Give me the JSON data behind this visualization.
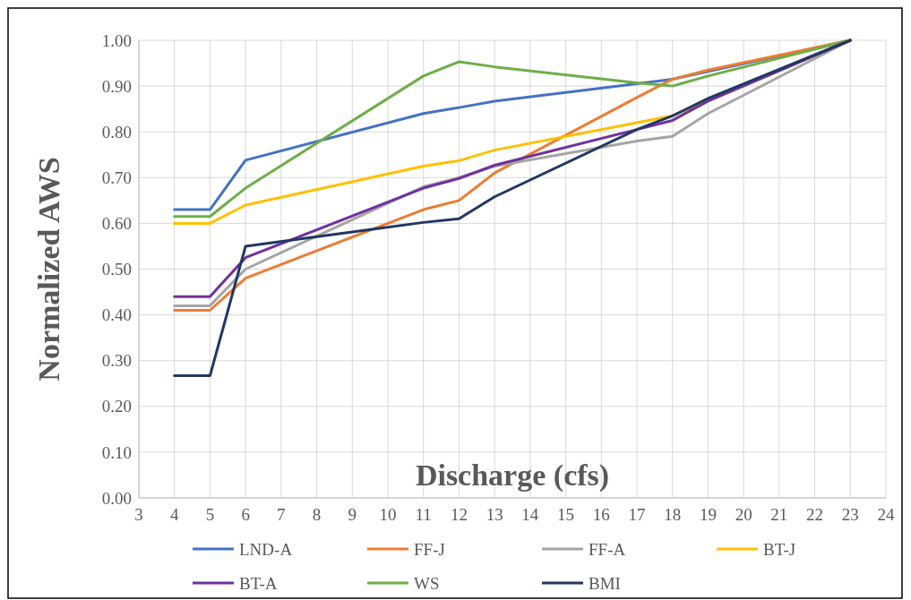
{
  "chart_data": {
    "type": "line",
    "xlabel": "Discharge (cfs)",
    "ylabel": "Normalized AWS",
    "x": [
      4,
      5,
      6,
      11,
      12,
      13,
      17,
      18,
      19,
      23
    ],
    "xlim": [
      3,
      24
    ],
    "xticks": [
      3,
      4,
      5,
      6,
      7,
      8,
      9,
      10,
      11,
      12,
      13,
      14,
      15,
      16,
      17,
      18,
      19,
      20,
      21,
      22,
      23,
      24
    ],
    "ylim": [
      0,
      1
    ],
    "yticks": [
      {
        "value": 0,
        "label": "0.00"
      },
      {
        "value": 0.1,
        "label": "0.10"
      },
      {
        "value": 0.2,
        "label": "0.20"
      },
      {
        "value": 0.3,
        "label": "0.30"
      },
      {
        "value": 0.4,
        "label": "0.40"
      },
      {
        "value": 0.5,
        "label": "0.50"
      },
      {
        "value": 0.6,
        "label": "0.60"
      },
      {
        "value": 0.7,
        "label": "0.70"
      },
      {
        "value": 0.8,
        "label": "0.80"
      },
      {
        "value": 0.9,
        "label": "0.90"
      },
      {
        "value": 1,
        "label": "1.00"
      }
    ],
    "grid": true,
    "legend": "bottom",
    "marker": "none",
    "line_style": "solid",
    "series": [
      {
        "name": "LND-A",
        "color": "#4472c4",
        "x": [
          4,
          5,
          6,
          11,
          12,
          13,
          17,
          18,
          23
        ],
        "values": [
          0.63,
          0.63,
          0.738,
          0.84,
          0.853,
          0.867,
          0.905,
          0.915,
          1.0
        ]
      },
      {
        "name": "FF-J",
        "color": "#ed7d31",
        "values": [
          0.41,
          0.41,
          0.48,
          0.63,
          0.65,
          0.71,
          0.875,
          0.915,
          0.935,
          1.0
        ]
      },
      {
        "name": "FF-A",
        "color": "#a5a5a5",
        "values": [
          0.42,
          0.42,
          0.5,
          0.68,
          0.7,
          0.725,
          0.78,
          0.79,
          0.84,
          1.0
        ]
      },
      {
        "name": "BT-J",
        "color": "#ffc000",
        "x": [
          4,
          5,
          6,
          11,
          12,
          13,
          17,
          18,
          23
        ],
        "values": [
          0.6,
          0.6,
          0.64,
          0.725,
          0.737,
          0.76,
          0.82,
          0.835,
          1.0
        ]
      },
      {
        "name": "BT-A",
        "color": "#7030a0",
        "values": [
          0.44,
          0.44,
          0.525,
          0.677,
          0.698,
          0.727,
          0.805,
          0.825,
          0.867,
          1.0
        ]
      },
      {
        "name": "WS",
        "color": "#70ad47",
        "values": [
          0.615,
          0.615,
          0.677,
          0.922,
          0.953,
          0.942,
          0.907,
          0.9,
          0.922,
          1.0
        ]
      },
      {
        "name": "BMI",
        "color": "#203864",
        "values": [
          0.267,
          0.267,
          0.55,
          0.602,
          0.61,
          0.658,
          0.805,
          0.835,
          0.873,
          1.0
        ]
      }
    ]
  }
}
